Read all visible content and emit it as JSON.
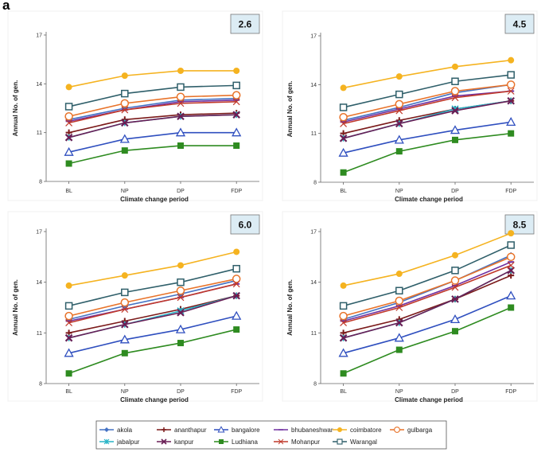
{
  "figure": {
    "panel_letter": "a",
    "xlabel": "Climate change period",
    "ylabel": "Annual No. of gen."
  },
  "legend": {
    "position": "bottom-center",
    "entries": [
      {
        "name": "akola",
        "color": "#4472c4",
        "marker": "diamond"
      },
      {
        "name": "ananthapur",
        "color": "#7b1a1a",
        "marker": "plus"
      },
      {
        "name": "bangalore",
        "color": "#2f4fbf",
        "marker": "triangle-open"
      },
      {
        "name": "bhubaneshwar",
        "color": "#7030a0",
        "marker": "dash"
      },
      {
        "name": "coimbatore",
        "color": "#f5b320",
        "marker": "circle"
      },
      {
        "name": "gulbarga",
        "color": "#e8732a",
        "marker": "circle-open"
      },
      {
        "name": "jabalpur",
        "color": "#26b3c6",
        "marker": "star"
      },
      {
        "name": "kanpur",
        "color": "#6a1f56",
        "marker": "x"
      },
      {
        "name": "Ludhiana",
        "color": "#2e8b20",
        "marker": "square"
      },
      {
        "name": "Mohanpur",
        "color": "#c0392b",
        "marker": "x-thin"
      },
      {
        "name": "Warangal",
        "color": "#2f5f6a",
        "marker": "square-open"
      }
    ]
  },
  "chart_data": [
    {
      "type": "line",
      "title": "2.6",
      "categories": [
        "BL",
        "NP",
        "DP",
        "FDP"
      ],
      "xlabel": "Climate change period",
      "ylabel": "Annual No. of gen.",
      "ylim": [
        8,
        17
      ],
      "yticks": [
        8,
        11,
        14,
        17
      ],
      "series": [
        {
          "name": "akola",
          "values": [
            11.8,
            12.5,
            13.0,
            13.1
          ]
        },
        {
          "name": "ananthapur",
          "values": [
            11.0,
            11.8,
            12.1,
            12.2
          ]
        },
        {
          "name": "bangalore",
          "values": [
            9.8,
            10.6,
            11.0,
            11.0
          ]
        },
        {
          "name": "bhubaneshwar",
          "values": [
            11.7,
            12.4,
            12.9,
            13.0
          ]
        },
        {
          "name": "coimbatore",
          "values": [
            13.8,
            14.5,
            14.8,
            14.8
          ]
        },
        {
          "name": "gulbarga",
          "values": [
            12.0,
            12.8,
            13.2,
            13.3
          ]
        },
        {
          "name": "jabalpur",
          "values": [
            10.7,
            11.6,
            12.0,
            12.1
          ]
        },
        {
          "name": "kanpur",
          "values": [
            10.7,
            11.6,
            12.0,
            12.1
          ]
        },
        {
          "name": "Ludhiana",
          "values": [
            9.1,
            9.9,
            10.2,
            10.2
          ]
        },
        {
          "name": "Mohanpur",
          "values": [
            11.6,
            12.4,
            12.8,
            12.9
          ]
        },
        {
          "name": "Warangal",
          "values": [
            12.6,
            13.4,
            13.8,
            13.9
          ]
        }
      ]
    },
    {
      "type": "line",
      "title": "4.5",
      "categories": [
        "BL",
        "NP",
        "DP",
        "FDP"
      ],
      "xlabel": "Climate change period",
      "ylabel": "Annual No. of gen.",
      "ylim": [
        8,
        17
      ],
      "yticks": [
        8,
        11,
        14,
        17
      ],
      "series": [
        {
          "name": "akola",
          "values": [
            11.8,
            12.6,
            13.5,
            14.0
          ]
        },
        {
          "name": "ananthapur",
          "values": [
            11.0,
            11.8,
            12.5,
            13.0
          ]
        },
        {
          "name": "bangalore",
          "values": [
            9.8,
            10.6,
            11.2,
            11.7
          ]
        },
        {
          "name": "bhubaneshwar",
          "values": [
            11.7,
            12.5,
            13.3,
            13.6
          ]
        },
        {
          "name": "coimbatore",
          "values": [
            13.8,
            14.5,
            15.1,
            15.5
          ]
        },
        {
          "name": "gulbarga",
          "values": [
            12.0,
            12.8,
            13.6,
            14.0
          ]
        },
        {
          "name": "jabalpur",
          "values": [
            10.7,
            11.6,
            12.5,
            13.0
          ]
        },
        {
          "name": "kanpur",
          "values": [
            10.7,
            11.6,
            12.4,
            13.0
          ]
        },
        {
          "name": "Ludhiana",
          "values": [
            8.6,
            9.9,
            10.6,
            11.0
          ]
        },
        {
          "name": "Mohanpur",
          "values": [
            11.6,
            12.4,
            13.2,
            13.6
          ]
        },
        {
          "name": "Warangal",
          "values": [
            12.6,
            13.4,
            14.2,
            14.6
          ]
        }
      ]
    },
    {
      "type": "line",
      "title": "6.0",
      "categories": [
        "BL",
        "NP",
        "DP",
        "FDP"
      ],
      "xlabel": "Climate change period",
      "ylabel": "Annual No. of gen.",
      "ylim": [
        8,
        17
      ],
      "yticks": [
        8,
        11,
        14,
        17
      ],
      "series": [
        {
          "name": "akola",
          "values": [
            11.8,
            12.6,
            13.3,
            14.1
          ]
        },
        {
          "name": "ananthapur",
          "values": [
            11.0,
            11.7,
            12.4,
            13.2
          ]
        },
        {
          "name": "bangalore",
          "values": [
            9.8,
            10.6,
            11.2,
            12.0
          ]
        },
        {
          "name": "bhubaneshwar",
          "values": [
            11.7,
            12.4,
            13.1,
            13.9
          ]
        },
        {
          "name": "coimbatore",
          "values": [
            13.8,
            14.4,
            15.0,
            15.8
          ]
        },
        {
          "name": "gulbarga",
          "values": [
            12.0,
            12.8,
            13.5,
            14.2
          ]
        },
        {
          "name": "jabalpur",
          "values": [
            10.7,
            11.5,
            12.3,
            13.2
          ]
        },
        {
          "name": "kanpur",
          "values": [
            10.7,
            11.5,
            12.2,
            13.2
          ]
        },
        {
          "name": "Ludhiana",
          "values": [
            8.6,
            9.8,
            10.4,
            11.2
          ]
        },
        {
          "name": "Mohanpur",
          "values": [
            11.6,
            12.4,
            13.1,
            13.9
          ]
        },
        {
          "name": "Warangal",
          "values": [
            12.6,
            13.4,
            14.0,
            14.8
          ]
        }
      ]
    },
    {
      "type": "line",
      "title": "8.5",
      "categories": [
        "BL",
        "NP",
        "DP",
        "FDP"
      ],
      "xlabel": "Climate change period",
      "ylabel": "Annual No. of gen.",
      "ylim": [
        8,
        17
      ],
      "yticks": [
        8,
        11,
        14,
        17
      ],
      "series": [
        {
          "name": "akola",
          "values": [
            11.8,
            12.8,
            14.1,
            15.6
          ]
        },
        {
          "name": "ananthapur",
          "values": [
            11.0,
            11.8,
            13.0,
            14.4
          ]
        },
        {
          "name": "bangalore",
          "values": [
            9.8,
            10.7,
            11.8,
            13.2
          ]
        },
        {
          "name": "bhubaneshwar",
          "values": [
            11.7,
            12.6,
            13.8,
            15.2
          ]
        },
        {
          "name": "coimbatore",
          "values": [
            13.8,
            14.5,
            15.6,
            16.9
          ]
        },
        {
          "name": "gulbarga",
          "values": [
            12.0,
            12.9,
            14.1,
            15.5
          ]
        },
        {
          "name": "jabalpur",
          "values": [
            10.7,
            11.6,
            13.0,
            14.7
          ]
        },
        {
          "name": "kanpur",
          "values": [
            10.7,
            11.6,
            13.0,
            14.7
          ]
        },
        {
          "name": "Ludhiana",
          "values": [
            8.6,
            10.0,
            11.1,
            12.5
          ]
        },
        {
          "name": "Mohanpur",
          "values": [
            11.6,
            12.5,
            13.7,
            15.0
          ]
        },
        {
          "name": "Warangal",
          "values": [
            12.6,
            13.5,
            14.7,
            16.2
          ]
        }
      ]
    }
  ]
}
